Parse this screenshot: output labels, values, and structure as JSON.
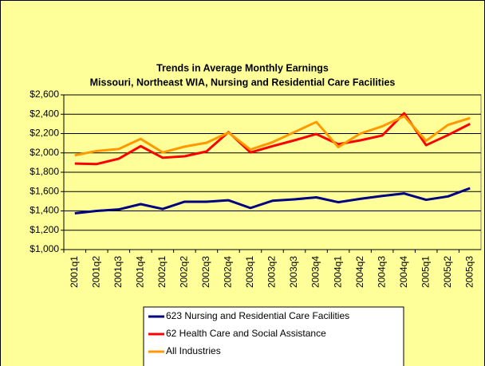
{
  "chart_data": {
    "type": "line",
    "title": "Trends in Average Monthly Earnings",
    "subtitle": "Missouri, Northeast WIA, Nursing and Residential Care Facilities",
    "categories": [
      "2001q1",
      "2001q2",
      "2001q3",
      "2001q4",
      "2002q1",
      "2002q2",
      "2002q3",
      "2002q4",
      "2003q1",
      "2003q2",
      "2003q3",
      "2003q4",
      "2004q1",
      "2004q2",
      "2004q3",
      "2004q4",
      "2005q1",
      "2005q2",
      "2005q3"
    ],
    "series": [
      {
        "name": "623 Nursing and Residential Care Facilities",
        "color": "#000080",
        "values": [
          1375,
          1400,
          1415,
          1470,
          1420,
          1495,
          1495,
          1510,
          1430,
          1505,
          1520,
          1540,
          1490,
          1525,
          1555,
          1580,
          1515,
          1550,
          1635
        ]
      },
      {
        "name": "62 Health Care and Social Assistance",
        "color": "#ff0000",
        "values": [
          1890,
          1885,
          1940,
          2070,
          1950,
          1965,
          2015,
          2215,
          2005,
          2070,
          2130,
          2195,
          2090,
          2130,
          2180,
          2410,
          2080,
          2185,
          2300
        ]
      },
      {
        "name": "All Industries",
        "color": "#ff9900",
        "values": [
          1975,
          2020,
          2040,
          2145,
          2005,
          2065,
          2105,
          2210,
          2035,
          2110,
          2215,
          2320,
          2060,
          2200,
          2275,
          2380,
          2125,
          2290,
          2360
        ]
      }
    ],
    "ylim": [
      1000,
      2600
    ],
    "yticks": [
      {
        "value": 1000,
        "label": "$1,000"
      },
      {
        "value": 1200,
        "label": "$1,200"
      },
      {
        "value": 1400,
        "label": "$1,400"
      },
      {
        "value": 1600,
        "label": "$1,600"
      },
      {
        "value": 1800,
        "label": "$1,800"
      },
      {
        "value": 2000,
        "label": "$2,000"
      },
      {
        "value": 2200,
        "label": "$2,200"
      },
      {
        "value": 2400,
        "label": "$2,400"
      },
      {
        "value": 2600,
        "label": "$2,600"
      }
    ],
    "grid": true,
    "legend": "bottom"
  }
}
